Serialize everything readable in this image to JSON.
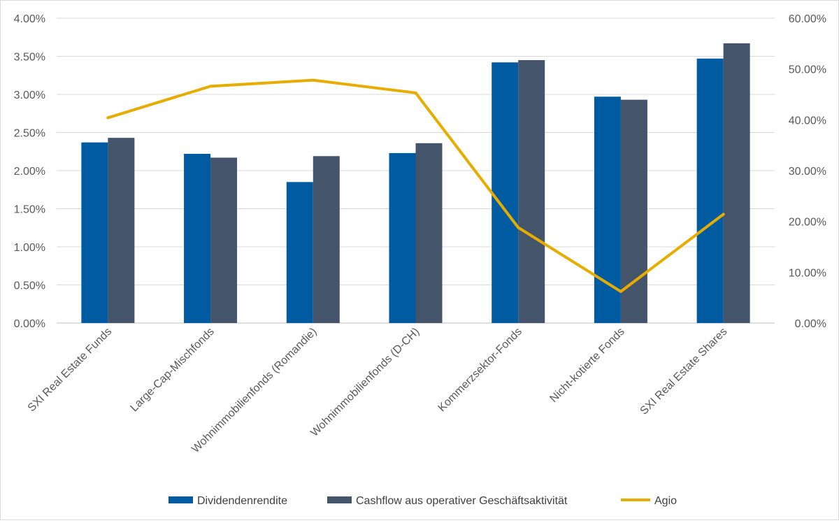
{
  "chart_data": {
    "type": "bar",
    "categories": [
      "SXI Real Estate Funds",
      "Large-Cap-Mischfonds",
      "Wohnimmobilienfonds  (Romandie)",
      "Wohnimmobilienfonds  (D-CH)",
      "Kommerzsektor-Fonds",
      "Nicht-kotierte Fonds",
      "SXI Real Estate Shares"
    ],
    "series": [
      {
        "name": "Dividendenrendite",
        "type": "bar",
        "axis": "left",
        "color": "#005ba1",
        "values": [
          2.37,
          2.22,
          1.85,
          2.23,
          3.42,
          2.97,
          3.47
        ]
      },
      {
        "name": "Cashflow aus operativer Geschäftsaktivität",
        "type": "bar",
        "axis": "left",
        "color": "#44546a",
        "values": [
          2.43,
          2.17,
          2.19,
          2.36,
          3.45,
          2.93,
          3.67
        ]
      },
      {
        "name": "Agio",
        "type": "line",
        "axis": "right",
        "color": "#e6ad00",
        "values": [
          40.4,
          46.6,
          47.8,
          45.3,
          18.8,
          6.2,
          21.4
        ]
      }
    ],
    "y_left": {
      "min": 0,
      "max": 4,
      "step": 0.5,
      "unit": "%",
      "decimals": 2,
      "tick_labels": [
        "0.00%",
        "0.50%",
        "1.00%",
        "1.50%",
        "2.00%",
        "2.50%",
        "3.00%",
        "3.50%",
        "4.00%"
      ]
    },
    "y_right": {
      "min": 0,
      "max": 60,
      "step": 10,
      "unit": "%",
      "decimals": 2,
      "tick_labels": [
        "0.00%",
        "10.00%",
        "20.00%",
        "30.00%",
        "40.00%",
        "50.00%",
        "60.00%"
      ]
    },
    "grid": true,
    "legend_position": "bottom",
    "title": "",
    "xlabel": "",
    "ylabel": ""
  }
}
